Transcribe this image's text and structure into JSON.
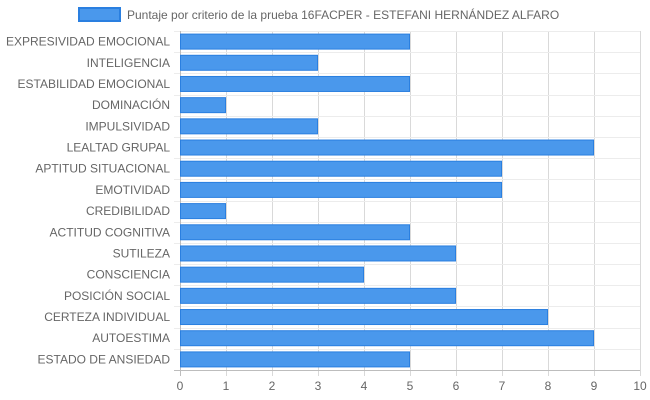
{
  "chart_data": {
    "type": "bar",
    "orientation": "horizontal",
    "categories": [
      "EXPRESIVIDAD EMOCIONAL",
      "INTELIGENCIA",
      "ESTABILIDAD EMOCIONAL",
      "DOMINACIÓN",
      "IMPULSIVIDAD",
      "LEALTAD GRUPAL",
      "APTITUD SITUACIONAL",
      "EMOTIVIDAD",
      "CREDIBILIDAD",
      "ACTITUD COGNITIVA",
      "SUTILEZA",
      "CONSCIENCIA",
      "POSICIÓN SOCIAL",
      "CERTEZA INDIVIDUAL",
      "AUTOESTIMA",
      "ESTADO DE ANSIEDAD"
    ],
    "series": [
      {
        "name": "Puntaje por criterio de la prueba 16FACPER - ESTEFANI HERNÁNDEZ ALFARO",
        "values": [
          5,
          3,
          5,
          1,
          3,
          9,
          7,
          7,
          1,
          5,
          6,
          4,
          6,
          8,
          9,
          5
        ],
        "color": "#4a98ec",
        "border_color": "#2a7fe0"
      }
    ],
    "xlim": [
      0,
      10
    ],
    "x_ticks": [
      0,
      1,
      2,
      3,
      4,
      5,
      6,
      7,
      8,
      9,
      10
    ],
    "grid": true,
    "legend": "top-center",
    "title": "",
    "xlabel": "",
    "ylabel": ""
  }
}
